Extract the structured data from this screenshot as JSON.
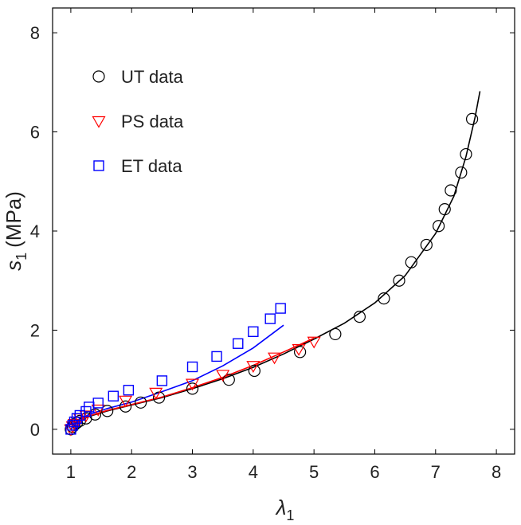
{
  "chart_data": {
    "type": "scatter",
    "xlabel": "λ",
    "xlabel_sub": "1",
    "ylabel": "s",
    "ylabel_sub": "1",
    "ylabel_unit": "(MPa)",
    "xlim": [
      0.7,
      8.3
    ],
    "ylim": [
      -0.5,
      8.5
    ],
    "xticks": [
      1,
      2,
      3,
      4,
      5,
      6,
      7,
      8
    ],
    "yticks": [
      0,
      2,
      4,
      6,
      8
    ],
    "grid": false,
    "legend_position": "top-left",
    "series": [
      {
        "name": "UT data",
        "marker": "circle",
        "color": "#000000",
        "points": [
          [
            1.0,
            0.0
          ],
          [
            1.03,
            0.05
          ],
          [
            1.06,
            0.09
          ],
          [
            1.1,
            0.13
          ],
          [
            1.15,
            0.17
          ],
          [
            1.25,
            0.22
          ],
          [
            1.4,
            0.3
          ],
          [
            1.6,
            0.37
          ],
          [
            1.9,
            0.46
          ],
          [
            2.15,
            0.54
          ],
          [
            2.45,
            0.64
          ],
          [
            3.0,
            0.82
          ],
          [
            3.6,
            1.0
          ],
          [
            4.02,
            1.18
          ],
          [
            4.77,
            1.56
          ],
          [
            5.35,
            1.92
          ],
          [
            5.75,
            2.27
          ],
          [
            6.15,
            2.64
          ],
          [
            6.4,
            3.0
          ],
          [
            6.6,
            3.37
          ],
          [
            6.85,
            3.72
          ],
          [
            7.05,
            4.1
          ],
          [
            7.15,
            4.44
          ],
          [
            7.25,
            4.82
          ],
          [
            7.42,
            5.18
          ],
          [
            7.5,
            5.55
          ],
          [
            7.6,
            6.26
          ]
        ]
      },
      {
        "name": "PS data",
        "marker": "triangle-down",
        "color": "#ff0000",
        "points": [
          [
            1.0,
            0.0
          ],
          [
            1.03,
            0.06
          ],
          [
            1.06,
            0.11
          ],
          [
            1.1,
            0.16
          ],
          [
            1.15,
            0.22
          ],
          [
            1.25,
            0.28
          ],
          [
            1.45,
            0.4
          ],
          [
            1.9,
            0.58
          ],
          [
            2.4,
            0.74
          ],
          [
            3.0,
            0.92
          ],
          [
            3.5,
            1.1
          ],
          [
            4.0,
            1.28
          ],
          [
            4.35,
            1.45
          ],
          [
            4.75,
            1.62
          ],
          [
            5.0,
            1.77
          ]
        ]
      },
      {
        "name": "ET data",
        "marker": "square",
        "color": "#0000ff",
        "points": [
          [
            1.0,
            0.0
          ],
          [
            1.03,
            0.08
          ],
          [
            1.06,
            0.15
          ],
          [
            1.1,
            0.22
          ],
          [
            1.15,
            0.28
          ],
          [
            1.25,
            0.36
          ],
          [
            1.3,
            0.45
          ],
          [
            1.45,
            0.53
          ],
          [
            1.7,
            0.67
          ],
          [
            1.95,
            0.79
          ],
          [
            2.5,
            0.98
          ],
          [
            3.0,
            1.26
          ],
          [
            3.4,
            1.47
          ],
          [
            3.75,
            1.73
          ],
          [
            4.0,
            1.97
          ],
          [
            4.28,
            2.23
          ],
          [
            4.45,
            2.44
          ]
        ]
      }
    ],
    "fit_curves": [
      {
        "color": "#000000",
        "points": [
          [
            1.0,
            0.0
          ],
          [
            1.1,
            0.14
          ],
          [
            1.3,
            0.26
          ],
          [
            1.6,
            0.37
          ],
          [
            2.0,
            0.49
          ],
          [
            2.5,
            0.64
          ],
          [
            3.0,
            0.82
          ],
          [
            3.5,
            1.02
          ],
          [
            4.0,
            1.25
          ],
          [
            4.5,
            1.52
          ],
          [
            5.0,
            1.82
          ],
          [
            5.5,
            2.14
          ],
          [
            6.0,
            2.55
          ],
          [
            6.5,
            3.1
          ],
          [
            7.0,
            3.95
          ],
          [
            7.3,
            4.7
          ],
          [
            7.5,
            5.5
          ],
          [
            7.65,
            6.3
          ],
          [
            7.73,
            6.82
          ]
        ]
      },
      {
        "color": "#ff0000",
        "points": [
          [
            1.0,
            0.0
          ],
          [
            1.1,
            0.15
          ],
          [
            1.3,
            0.27
          ],
          [
            1.6,
            0.38
          ],
          [
            2.0,
            0.5
          ],
          [
            2.5,
            0.65
          ],
          [
            3.0,
            0.84
          ],
          [
            3.5,
            1.05
          ],
          [
            4.0,
            1.29
          ],
          [
            4.5,
            1.56
          ],
          [
            5.0,
            1.84
          ]
        ]
      },
      {
        "color": "#0000ff",
        "points": [
          [
            1.0,
            0.0
          ],
          [
            1.1,
            0.17
          ],
          [
            1.3,
            0.3
          ],
          [
            1.6,
            0.42
          ],
          [
            2.0,
            0.55
          ],
          [
            2.5,
            0.76
          ],
          [
            3.0,
            0.98
          ],
          [
            3.5,
            1.28
          ],
          [
            4.0,
            1.64
          ],
          [
            4.5,
            2.1
          ]
        ]
      }
    ]
  }
}
